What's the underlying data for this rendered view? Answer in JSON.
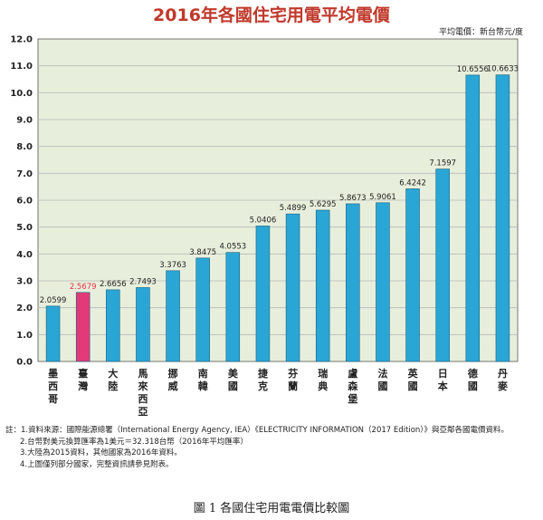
{
  "chart_data": {
    "type": "bar",
    "title": "2016年各國住宅用電平均電價",
    "unit_label": "平均電價：新台幣元/度",
    "categories": [
      "墨西哥",
      "臺灣",
      "大陸",
      "馬來西亞",
      "挪威",
      "南韓",
      "美國",
      "捷克",
      "芬蘭",
      "瑞典",
      "盧森堡",
      "法國",
      "英國",
      "日本",
      "德國",
      "丹麥"
    ],
    "values": [
      2.0599,
      2.5679,
      2.6656,
      2.7493,
      3.3763,
      3.8475,
      4.0553,
      5.0406,
      5.4899,
      5.6295,
      5.8673,
      5.9061,
      6.4242,
      7.1597,
      10.6556,
      10.6633
    ],
    "value_labels": [
      "2.0599",
      "2.5679",
      "2.6656",
      "2.7493",
      "3.3763",
      "3.8475",
      "4.0553",
      "5.0406",
      "5.4899",
      "5.6295",
      "5.8673",
      "5.9061",
      "6.4242",
      "7.1597",
      "10.6556",
      "10.6633"
    ],
    "highlight_category": "臺灣",
    "ylim": [
      0,
      12
    ],
    "yticks": [
      "0.0",
      "1.0",
      "2.0",
      "3.0",
      "4.0",
      "5.0",
      "6.0",
      "7.0",
      "8.0",
      "9.0",
      "10.0",
      "11.0",
      "12.0"
    ],
    "grid": true,
    "legend": "none",
    "colors": {
      "bar": "#2aa6d6",
      "bar_highlight": "#e23a78",
      "highlight_label": "#e8334a",
      "plot_background": "#e7efdc",
      "title": "#c0392b"
    }
  },
  "notes": [
    "註：1.資料來源：國際能源總署（International Energy Agency, IEA）《ELECTRICITY INFORMATION（2017 Edition）》與亞鄰各國電價資料。",
    "2.台幣對美元換算匯率為1美元＝32.318台幣（2016年平均匯率）",
    "3.大陸為2015資料，其他國家為2016年資料。",
    "4.上圖僅列部分國家，完整資訊請參見附表。"
  ],
  "caption": "圖 1 各國住宅用電電價比較圖"
}
